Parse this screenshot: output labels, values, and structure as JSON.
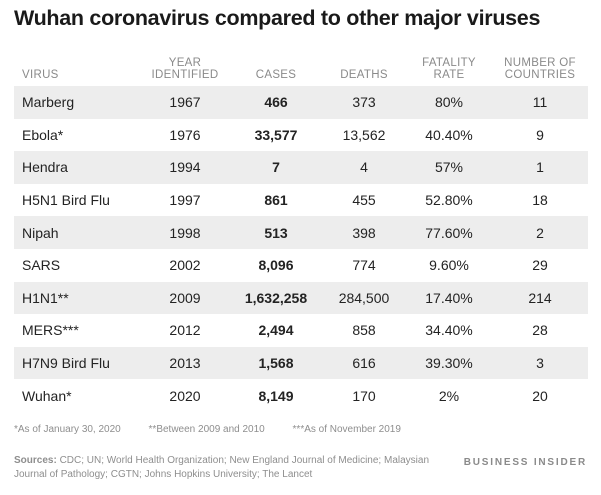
{
  "title": "Wuhan coronavirus compared to other major viruses",
  "chart_data": {
    "type": "table",
    "columns": [
      "VIRUS",
      "YEAR IDENTIFIED",
      "CASES",
      "DEATHS",
      "FATALITY RATE",
      "NUMBER OF COUNTRIES"
    ],
    "rows": [
      [
        "Marberg",
        "1967",
        "466",
        "373",
        "80%",
        "11"
      ],
      [
        "Ebola*",
        "1976",
        "33,577",
        "13,562",
        "40.40%",
        "9"
      ],
      [
        "Hendra",
        "1994",
        "7",
        "4",
        "57%",
        "1"
      ],
      [
        "H5N1 Bird Flu",
        "1997",
        "861",
        "455",
        "52.80%",
        "18"
      ],
      [
        "Nipah",
        "1998",
        "513",
        "398",
        "77.60%",
        "2"
      ],
      [
        "SARS",
        "2002",
        "8,096",
        "774",
        "9.60%",
        "29"
      ],
      [
        "H1N1**",
        "2009",
        "1,632,258",
        "284,500",
        "17.40%",
        "214"
      ],
      [
        "MERS***",
        "2012",
        "2,494",
        "858",
        "34.40%",
        "28"
      ],
      [
        "H7N9 Bird Flu",
        "2013",
        "1,568",
        "616",
        "39.30%",
        "3"
      ],
      [
        "Wuhan*",
        "2020",
        "8,149",
        "170",
        "2%",
        "20"
      ]
    ]
  },
  "footnotes": [
    "*As of January 30, 2020",
    "**Between 2009 and 2010",
    "***As of November 2019"
  ],
  "sources": {
    "label": "Sources:",
    "text": "CDC; UN; World Health Organization; New England Journal of Medicine; Malaysian Journal of Pathology; CGTN; Johns Hopkins University; The Lancet"
  },
  "brand": "BUSINESS INSIDER",
  "colors": {
    "row_shade": "#ededed",
    "header_text": "#8a8a8a"
  }
}
